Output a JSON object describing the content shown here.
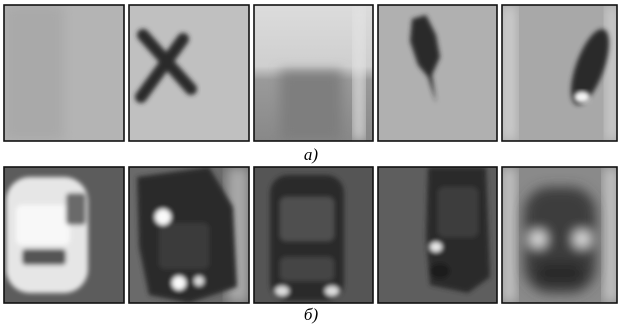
{
  "figure": {
    "rows": [
      {
        "label": "а)"
      },
      {
        "label": "б)"
      }
    ]
  }
}
